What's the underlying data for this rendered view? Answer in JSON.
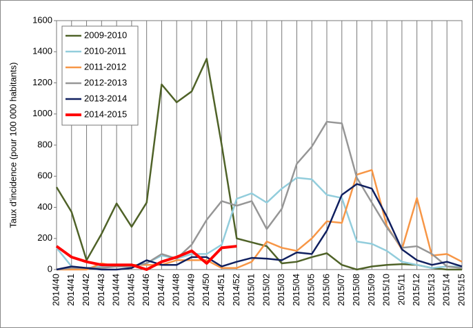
{
  "chart_data": {
    "type": "line",
    "y_label": "Taux d'incidence (pour 100 000 habitants)",
    "categories": [
      "2014/40",
      "2014/41",
      "2014/42",
      "2014/43",
      "2014/44",
      "2014/45",
      "2014/46",
      "2014/47",
      "2014/48",
      "2014/49",
      "2014/50",
      "2014/51",
      "2014/52",
      "2015/01",
      "2015/02",
      "2015/03",
      "2015/04",
      "2015/05",
      "2015/06",
      "2015/07",
      "2015/08",
      "2015/09",
      "2015/10",
      "2015/11",
      "2015/12",
      "2015/13",
      "2015/14",
      "2015/15"
    ],
    "ylim": [
      0,
      1600
    ],
    "yticks": [
      0,
      200,
      400,
      600,
      800,
      1000,
      1200,
      1400,
      1600
    ],
    "grid": "x",
    "legend": "upper left",
    "series": [
      {
        "name": "2009-2010",
        "color": "#4f6228",
        "values": [
          530,
          370,
          60,
          230,
          425,
          275,
          430,
          1190,
          1075,
          1145,
          1355,
          800,
          200,
          175,
          150,
          40,
          50,
          80,
          105,
          30,
          0,
          20,
          30,
          35,
          30,
          10,
          0,
          0
        ]
      },
      {
        "name": "2010-2011",
        "color": "#92cddc",
        "values": [
          140,
          20,
          10,
          20,
          20,
          20,
          40,
          90,
          70,
          100,
          100,
          160,
          455,
          490,
          430,
          520,
          590,
          580,
          480,
          460,
          180,
          165,
          120,
          50,
          30,
          10,
          20,
          20
        ]
      },
      {
        "name": "2011-2012",
        "color": "#f79646",
        "values": [
          0,
          0,
          0,
          40,
          20,
          30,
          30,
          30,
          60,
          60,
          60,
          10,
          10,
          50,
          180,
          140,
          120,
          200,
          310,
          300,
          610,
          640,
          280,
          130,
          460,
          90,
          100,
          50
        ]
      },
      {
        "name": "2012-2013",
        "color": "#969696",
        "values": [
          0,
          10,
          10,
          10,
          20,
          20,
          40,
          100,
          70,
          160,
          320,
          440,
          410,
          440,
          260,
          390,
          680,
          790,
          950,
          940,
          590,
          430,
          270,
          140,
          150,
          100,
          20,
          10
        ]
      },
      {
        "name": "2013-2014",
        "color": "#0f1f5f",
        "values": [
          0,
          20,
          10,
          0,
          0,
          10,
          60,
          30,
          30,
          80,
          80,
          20,
          50,
          75,
          70,
          60,
          110,
          100,
          250,
          480,
          550,
          520,
          340,
          130,
          60,
          30,
          50,
          20
        ]
      },
      {
        "name": "2014-2015",
        "color": "#ff0000",
        "values": [
          150,
          80,
          50,
          30,
          30,
          30,
          0,
          50,
          80,
          120,
          40,
          140,
          150,
          null,
          null,
          null,
          null,
          null,
          null,
          null,
          null,
          null,
          null,
          null,
          null,
          null,
          null,
          null
        ]
      }
    ]
  }
}
